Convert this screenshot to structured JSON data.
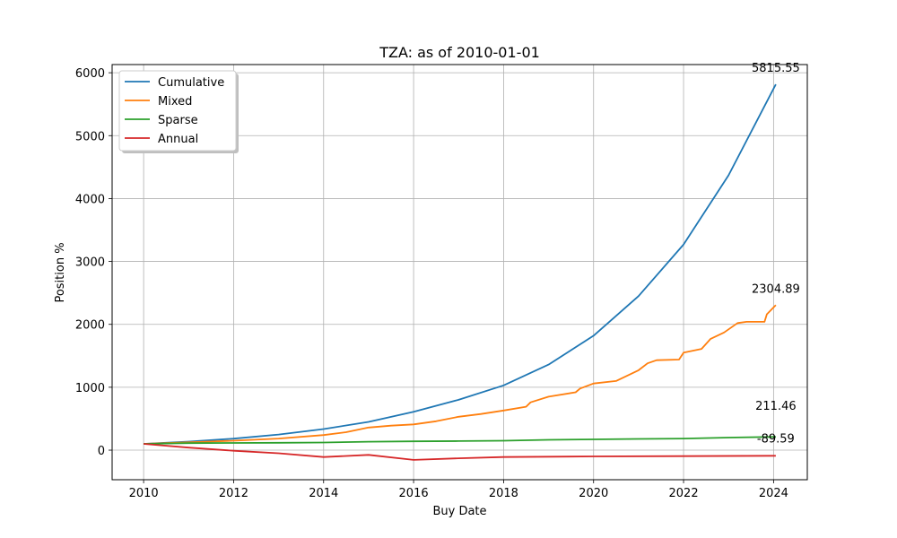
{
  "chart_data": {
    "type": "line",
    "title": "TZA: as of 2010-01-01",
    "xlabel": "Buy Date",
    "ylabel": "Position %",
    "xlim": [
      2009.3,
      2024.75
    ],
    "ylim": [
      -470,
      6130
    ],
    "xticks": [
      2010,
      2012,
      2014,
      2016,
      2018,
      2020,
      2022,
      2024
    ],
    "xtick_labels": [
      "2010",
      "2012",
      "2014",
      "2016",
      "2018",
      "2020",
      "2022",
      "2024"
    ],
    "yticks": [
      0,
      1000,
      2000,
      3000,
      4000,
      5000,
      6000
    ],
    "ytick_labels": [
      "0",
      "1000",
      "2000",
      "3000",
      "4000",
      "5000",
      "6000"
    ],
    "grid": true,
    "legend_position": "top-left",
    "series": [
      {
        "name": "Cumulative",
        "color": "#1f77b4",
        "end_label": "5815.55",
        "x": [
          2010,
          2011,
          2012,
          2013,
          2014,
          2015,
          2016,
          2017,
          2018,
          2019,
          2020,
          2021,
          2022,
          2023,
          2024.05
        ],
        "y": [
          100,
          136,
          183,
          248,
          335,
          450,
          610,
          800,
          1030,
          1360,
          1820,
          2450,
          3270,
          4370,
          5815.55
        ]
      },
      {
        "name": "Mixed",
        "color": "#ff7f0e",
        "end_label": "2304.89",
        "x": [
          2010,
          2011,
          2012,
          2013,
          2014,
          2014.5,
          2015,
          2015.5,
          2016,
          2016.5,
          2017,
          2017.5,
          2018,
          2018.5,
          2018.6,
          2019,
          2019.6,
          2019.7,
          2020,
          2020.5,
          2021,
          2021.2,
          2021.4,
          2021.9,
          2022,
          2022.4,
          2022.6,
          2022.9,
          2023.2,
          2023.4,
          2023.8,
          2023.85,
          2024.05
        ],
        "y": [
          100,
          125,
          150,
          185,
          240,
          285,
          360,
          390,
          410,
          460,
          530,
          575,
          630,
          690,
          760,
          850,
          920,
          980,
          1060,
          1100,
          1270,
          1380,
          1430,
          1440,
          1550,
          1610,
          1770,
          1870,
          2020,
          2040,
          2040,
          2160,
          2304.89
        ]
      },
      {
        "name": "Sparse",
        "color": "#2ca02c",
        "end_label": "211.46",
        "x": [
          2010,
          2011,
          2012,
          2013,
          2014,
          2015,
          2016,
          2017,
          2018,
          2019,
          2020,
          2021,
          2022,
          2023,
          2024.05
        ],
        "y": [
          100,
          112,
          115,
          118,
          122,
          135,
          140,
          145,
          150,
          165,
          172,
          178,
          185,
          200,
          211.46
        ]
      },
      {
        "name": "Annual",
        "color": "#d62728",
        "end_label": "-89.59",
        "x": [
          2010,
          2011,
          2012,
          2013,
          2014,
          2015,
          2016,
          2017,
          2018,
          2020,
          2022,
          2024.05
        ],
        "y": [
          100,
          40,
          -10,
          -50,
          -110,
          -75,
          -155,
          -130,
          -110,
          -100,
          -95,
          -89.59
        ]
      }
    ]
  }
}
